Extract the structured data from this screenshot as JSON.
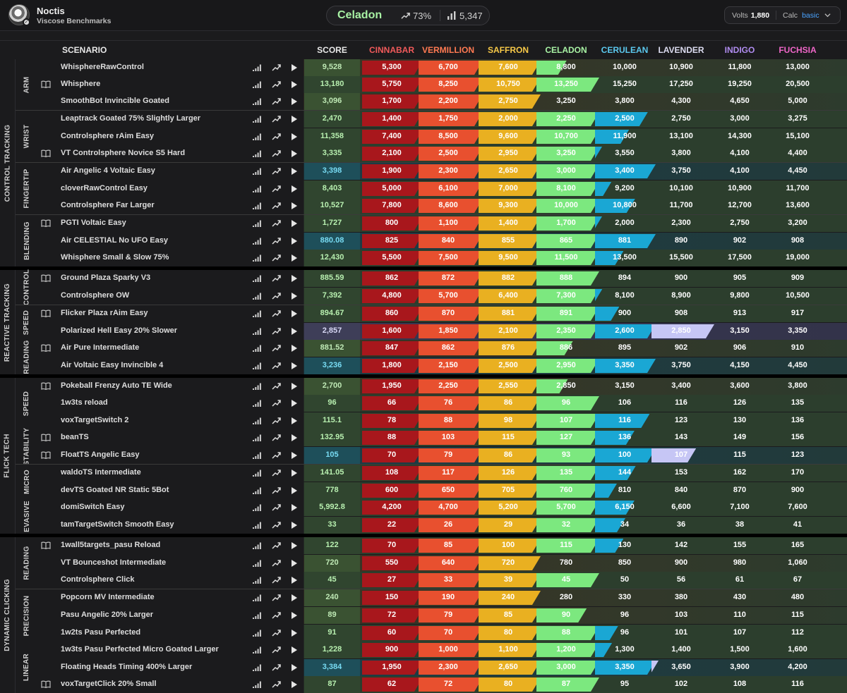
{
  "header": {
    "user_name": "Noctis",
    "subtitle": "Viscose Benchmarks",
    "rank": "Celadon",
    "rank_percent": "73%",
    "rank_total": "5,347",
    "volts_label": "Volts",
    "volts_value": "1,880",
    "calc_label": "Calc",
    "calc_value": "basic"
  },
  "columns": {
    "scenario": "SCENARIO",
    "score": "SCORE",
    "ranks": [
      {
        "name": "CINNABAR",
        "color": "#f05a5a"
      },
      {
        "name": "VERMILLION",
        "color": "#ff7a52"
      },
      {
        "name": "SAFFRON",
        "color": "#f7c948"
      },
      {
        "name": "CELADON",
        "color": "#a8f2a4"
      },
      {
        "name": "CERULEAN",
        "color": "#5bc8ee"
      },
      {
        "name": "LAVENDER",
        "color": "#dcdcf0"
      },
      {
        "name": "INDIGO",
        "color": "#b08cf0"
      },
      {
        "name": "FUCHSIA",
        "color": "#ef66c8"
      }
    ]
  },
  "categories": [
    {
      "name": "CONTROL TRACKING",
      "subcategories": [
        {
          "name": "ARM",
          "scenarios": [
            {
              "name": "WhisphereRawControl",
              "book": false,
              "score": "9,528",
              "achieved": 3,
              "progress": 0.48,
              "thresholds": [
                "5,300",
                "6,700",
                "7,600",
                "8,800",
                "10,000",
                "10,900",
                "11,800",
                "13,000"
              ]
            },
            {
              "name": "Whisphere",
              "book": true,
              "score": "13,180",
              "achieved": 4,
              "progress": 0,
              "thresholds": [
                "5,750",
                "8,250",
                "10,750",
                "13,250",
                "15,250",
                "17,250",
                "19,250",
                "20,500"
              ]
            },
            {
              "name": "SmoothBot Invincible Goated",
              "book": false,
              "score": "3,096",
              "achieved": 3,
              "progress": 0,
              "thresholds": [
                "1,700",
                "2,200",
                "2,750",
                "3,250",
                "3,800",
                "4,300",
                "4,650",
                "5,000"
              ]
            }
          ]
        },
        {
          "name": "WRIST",
          "scenarios": [
            {
              "name": "Leaptrack Goated 75% Slightly Larger",
              "book": false,
              "score": "2,470",
              "achieved": 4,
              "progress": 0.87,
              "thresholds": [
                "1,400",
                "1,750",
                "2,000",
                "2,250",
                "2,500",
                "2,750",
                "3,000",
                "3,275"
              ]
            },
            {
              "name": "Controlsphere rAim Easy",
              "book": false,
              "score": "11,358",
              "achieved": 4,
              "progress": 0.56,
              "thresholds": [
                "7,400",
                "8,500",
                "9,600",
                "10,700",
                "11,900",
                "13,100",
                "14,300",
                "15,100"
              ]
            },
            {
              "name": "VT Controlsphere Novice S5 Hard",
              "book": true,
              "score": "3,335",
              "achieved": 4,
              "progress": 0.06,
              "thresholds": [
                "2,100",
                "2,500",
                "2,950",
                "3,250",
                "3,550",
                "3,800",
                "4,100",
                "4,400"
              ]
            }
          ]
        },
        {
          "name": "FINGERTIP",
          "scenarios": [
            {
              "name": "Air Angelic 4 Voltaic Easy",
              "book": false,
              "score": "3,398",
              "achieved": 5,
              "progress": 0,
              "thresholds": [
                "1,900",
                "2,300",
                "2,650",
                "3,000",
                "3,400",
                "3,750",
                "4,100",
                "4,450"
              ]
            },
            {
              "name": "cloverRawControl Easy",
              "book": false,
              "score": "8,403",
              "achieved": 4,
              "progress": 0.27,
              "thresholds": [
                "5,000",
                "6,100",
                "7,000",
                "8,100",
                "9,200",
                "10,100",
                "10,900",
                "11,700"
              ]
            },
            {
              "name": "Controlsphere Far Larger",
              "book": false,
              "score": "10,527",
              "achieved": 4,
              "progress": 0.66,
              "thresholds": [
                "7,800",
                "8,600",
                "9,300",
                "10,000",
                "10,800",
                "11,700",
                "12,700",
                "13,600"
              ]
            }
          ]
        },
        {
          "name": "BLENDING",
          "scenarios": [
            {
              "name": "PGTI Voltaic Easy",
              "book": true,
              "score": "1,727",
              "achieved": 4,
              "progress": 0.09,
              "thresholds": [
                "800",
                "1,100",
                "1,400",
                "1,700",
                "2,000",
                "2,300",
                "2,750",
                "3,200"
              ]
            },
            {
              "name": "Air CELESTIAL No UFO Easy",
              "book": false,
              "score": "880.08",
              "achieved": 5,
              "progress": 0,
              "thresholds": [
                "825",
                "840",
                "855",
                "865",
                "881",
                "890",
                "902",
                "908"
              ]
            },
            {
              "name": "Whisphere Small & Slow 75%",
              "book": false,
              "score": "12,430",
              "achieved": 4,
              "progress": 0.47,
              "thresholds": [
                "5,500",
                "7,500",
                "9,500",
                "11,500",
                "13,500",
                "15,500",
                "17,500",
                "19,000"
              ]
            }
          ]
        }
      ]
    },
    {
      "name": "REACTIVE TRACKING",
      "subcategories": [
        {
          "name": "CONTROL",
          "scenarios": [
            {
              "name": "Ground Plaza Sparky V3",
              "book": true,
              "score": "885.59",
              "achieved": 4,
              "progress": 0,
              "thresholds": [
                "862",
                "872",
                "882",
                "888",
                "894",
                "900",
                "905",
                "909"
              ]
            },
            {
              "name": "Controlsphere OW",
              "book": false,
              "score": "7,392",
              "achieved": 4,
              "progress": 0.12,
              "thresholds": [
                "4,800",
                "5,700",
                "6,400",
                "7,300",
                "8,100",
                "8,900",
                "9,800",
                "10,500"
              ]
            }
          ]
        },
        {
          "name": "SPEED",
          "scenarios": [
            {
              "name": "Flicker Plaza rAim Easy",
              "book": true,
              "score": "894.67",
              "achieved": 4,
              "progress": 0.4,
              "thresholds": [
                "860",
                "870",
                "881",
                "891",
                "900",
                "908",
                "913",
                "917"
              ]
            },
            {
              "name": "Polarized Hell Easy 20% Slower",
              "book": false,
              "score": "2,857",
              "achieved": 6,
              "progress": 0,
              "thresholds": [
                "1,600",
                "1,850",
                "2,100",
                "2,350",
                "2,600",
                "2,850",
                "3,150",
                "3,350"
              ]
            }
          ]
        },
        {
          "name": "READING",
          "scenarios": [
            {
              "name": "Air Pure Intermediate",
              "book": true,
              "score": "881.52",
              "achieved": 3,
              "progress": 0.58,
              "thresholds": [
                "847",
                "862",
                "876",
                "886",
                "895",
                "902",
                "906",
                "910"
              ]
            },
            {
              "name": "Air Voltaic Easy Invincible 4",
              "book": false,
              "score": "3,236",
              "achieved": 5,
              "progress": 0,
              "thresholds": [
                "1,800",
                "2,150",
                "2,500",
                "2,950",
                "3,350",
                "3,750",
                "4,150",
                "4,450"
              ]
            }
          ]
        }
      ]
    },
    {
      "name": "FLICK TECH",
      "subcategories": [
        {
          "name": "SPEED",
          "scenarios": [
            {
              "name": "Pokeball Frenzy Auto TE Wide",
              "book": true,
              "score": "2,700",
              "achieved": 3,
              "progress": 0.5,
              "thresholds": [
                "1,950",
                "2,250",
                "2,550",
                "2,850",
                "3,150",
                "3,400",
                "3,600",
                "3,800"
              ]
            },
            {
              "name": "1w3ts reload",
              "book": false,
              "score": "96",
              "achieved": 4,
              "progress": 0,
              "thresholds": [
                "66",
                "76",
                "86",
                "96",
                "106",
                "116",
                "126",
                "135"
              ]
            },
            {
              "name": "voxTargetSwitch 2",
              "book": false,
              "score": "115.1",
              "achieved": 4,
              "progress": 0.9,
              "thresholds": [
                "78",
                "88",
                "98",
                "107",
                "116",
                "123",
                "130",
                "136"
              ]
            }
          ]
        },
        {
          "name": "STABILITY",
          "scenarios": [
            {
              "name": "beanTS",
              "book": true,
              "score": "132.95",
              "achieved": 4,
              "progress": 0.65,
              "thresholds": [
                "88",
                "103",
                "115",
                "127",
                "136",
                "143",
                "149",
                "156"
              ]
            },
            {
              "name": "FloatTS Angelic Easy",
              "book": true,
              "score": "105",
              "achieved": 5,
              "progress": 0.71,
              "thresholds": [
                "70",
                "79",
                "86",
                "93",
                "100",
                "107",
                "115",
                "123"
              ]
            }
          ]
        },
        {
          "name": "MICRO",
          "scenarios": [
            {
              "name": "waldoTS Intermediate",
              "book": false,
              "score": "141.05",
              "achieved": 4,
              "progress": 0.67,
              "thresholds": [
                "108",
                "117",
                "126",
                "135",
                "144",
                "153",
                "162",
                "170"
              ]
            },
            {
              "name": "devTS Goated NR Static 5Bot",
              "book": false,
              "score": "778",
              "achieved": 4,
              "progress": 0.36,
              "thresholds": [
                "600",
                "650",
                "705",
                "760",
                "810",
                "840",
                "870",
                "900"
              ]
            }
          ]
        },
        {
          "name": "EVASIVE",
          "scenarios": [
            {
              "name": "domiSwitch Easy",
              "book": false,
              "score": "5,992.8",
              "achieved": 4,
              "progress": 0.65,
              "thresholds": [
                "4,200",
                "4,700",
                "5,200",
                "5,700",
                "6,150",
                "6,600",
                "7,100",
                "7,600"
              ]
            },
            {
              "name": "tamTargetSwitch Smooth Easy",
              "book": false,
              "score": "33",
              "achieved": 4,
              "progress": 0.5,
              "thresholds": [
                "22",
                "26",
                "29",
                "32",
                "34",
                "36",
                "38",
                "41"
              ]
            }
          ]
        }
      ]
    },
    {
      "name": "DYNAMIC CLICKING",
      "subcategories": [
        {
          "name": "READING",
          "scenarios": [
            {
              "name": "1wall5targets_pasu Reload",
              "book": true,
              "score": "122",
              "achieved": 4,
              "progress": 0.47,
              "thresholds": [
                "70",
                "85",
                "100",
                "115",
                "130",
                "142",
                "155",
                "165"
              ]
            },
            {
              "name": "VT Bounceshot Intermediate",
              "book": false,
              "score": "720",
              "achieved": 3,
              "progress": 0,
              "thresholds": [
                "550",
                "640",
                "720",
                "780",
                "850",
                "900",
                "980",
                "1,060"
              ]
            },
            {
              "name": "Controlsphere Click",
              "book": false,
              "score": "45",
              "achieved": 4,
              "progress": 0,
              "thresholds": [
                "27",
                "33",
                "39",
                "45",
                "50",
                "56",
                "61",
                "67"
              ]
            }
          ]
        },
        {
          "name": "PRECISION",
          "scenarios": [
            {
              "name": "Popcorn MV Intermediate",
              "book": false,
              "score": "240",
              "achieved": 3,
              "progress": 0,
              "thresholds": [
                "150",
                "190",
                "240",
                "280",
                "330",
                "380",
                "430",
                "480"
              ]
            },
            {
              "name": "Pasu Angelic 20% Larger",
              "book": false,
              "score": "89",
              "achieved": 3,
              "progress": 0.8,
              "thresholds": [
                "72",
                "79",
                "85",
                "90",
                "96",
                "103",
                "110",
                "115"
              ]
            },
            {
              "name": "1w2ts Pasu Perfected",
              "book": false,
              "score": "91",
              "achieved": 4,
              "progress": 0.38,
              "thresholds": [
                "60",
                "70",
                "80",
                "88",
                "96",
                "101",
                "107",
                "112"
              ]
            }
          ]
        },
        {
          "name": "LINEAR",
          "scenarios": [
            {
              "name": "1w3ts Pasu Perfected Micro Goated Larger",
              "book": false,
              "score": "1,228",
              "achieved": 4,
              "progress": 0.28,
              "thresholds": [
                "900",
                "1,000",
                "1,100",
                "1,200",
                "1,300",
                "1,400",
                "1,500",
                "1,600"
              ]
            },
            {
              "name": "Floating Heads Timing 400% Larger",
              "book": false,
              "score": "3,384",
              "achieved": 5,
              "progress": 0.11,
              "thresholds": [
                "1,950",
                "2,300",
                "2,650",
                "3,000",
                "3,350",
                "3,650",
                "3,900",
                "4,200"
              ]
            },
            {
              "name": "voxTargetClick 20% Small",
              "book": true,
              "score": "87",
              "achieved": 4,
              "progress": 0,
              "thresholds": [
                "62",
                "72",
                "80",
                "87",
                "95",
                "102",
                "108",
                "116"
              ]
            }
          ]
        }
      ]
    }
  ]
}
